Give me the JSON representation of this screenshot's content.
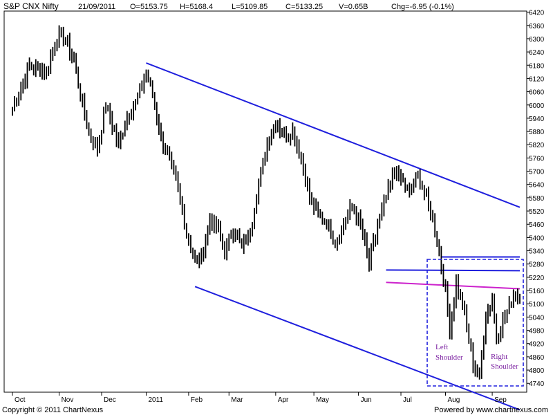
{
  "header": {
    "title": "S&P CNX Nifty",
    "date": "21/09/2011",
    "open": "O=5153.75",
    "high": "H=5168.4",
    "low": "L=5109.85",
    "close": "C=5133.25",
    "volume": "V=0.65B",
    "change": "Chg=-6.95 (-0.1%)"
  },
  "footer": {
    "copyright": "Copyright © 2011 ChartNexus",
    "powered": "Powered by www.chartnexus.com"
  },
  "chart_data": {
    "type": "line",
    "title": "S&P CNX Nifty",
    "y_ticks": [
      4740,
      4800,
      4860,
      4920,
      4980,
      5040,
      5100,
      5160,
      5220,
      5280,
      5340,
      5400,
      5460,
      5520,
      5580,
      5640,
      5700,
      5760,
      5820,
      5880,
      5940,
      6000,
      6060,
      6120,
      6180,
      6240,
      6300,
      6360,
      6420
    ],
    "ylim": [
      4700,
      6425
    ],
    "x_ticks": [
      {
        "label": "Oct",
        "index": 0
      },
      {
        "label": "Nov",
        "index": 22
      },
      {
        "label": "Dec",
        "index": 42
      },
      {
        "label": "2011",
        "index": 63
      },
      {
        "label": "Feb",
        "index": 83
      },
      {
        "label": "Mar",
        "index": 102
      },
      {
        "label": "Apr",
        "index": 124
      },
      {
        "label": "May",
        "index": 142
      },
      {
        "label": "Jun",
        "index": 163
      },
      {
        "label": "Jul",
        "index": 183
      },
      {
        "label": "Aug",
        "index": 204
      },
      {
        "label": "Sep",
        "index": 226
      }
    ],
    "n_points": 240,
    "series": [
      {
        "color": "#000000",
        "close_anchors": [
          [
            0,
            5980
          ],
          [
            8,
            6180
          ],
          [
            16,
            6150
          ],
          [
            21,
            6310
          ],
          [
            25,
            6300
          ],
          [
            29,
            6200
          ],
          [
            33,
            6000
          ],
          [
            36,
            5870
          ],
          [
            40,
            5800
          ],
          [
            44,
            6000
          ],
          [
            50,
            5820
          ],
          [
            54,
            5950
          ],
          [
            58,
            6010
          ],
          [
            63,
            6150
          ],
          [
            66,
            6050
          ],
          [
            70,
            5850
          ],
          [
            74,
            5750
          ],
          [
            78,
            5620
          ],
          [
            82,
            5420
          ],
          [
            86,
            5300
          ],
          [
            89,
            5300
          ],
          [
            93,
            5480
          ],
          [
            97,
            5440
          ],
          [
            100,
            5330
          ],
          [
            104,
            5450
          ],
          [
            108,
            5350
          ],
          [
            112,
            5430
          ],
          [
            116,
            5650
          ],
          [
            120,
            5820
          ],
          [
            124,
            5930
          ],
          [
            128,
            5860
          ],
          [
            132,
            5880
          ],
          [
            136,
            5760
          ],
          [
            140,
            5580
          ],
          [
            144,
            5500
          ],
          [
            148,
            5470
          ],
          [
            152,
            5380
          ],
          [
            156,
            5460
          ],
          [
            160,
            5540
          ],
          [
            164,
            5460
          ],
          [
            168,
            5280
          ],
          [
            172,
            5450
          ],
          [
            176,
            5580
          ],
          [
            180,
            5700
          ],
          [
            184,
            5650
          ],
          [
            187,
            5600
          ],
          [
            191,
            5680
          ],
          [
            195,
            5580
          ],
          [
            198,
            5470
          ],
          [
            201,
            5340
          ],
          [
            204,
            5150
          ],
          [
            206,
            4990
          ],
          [
            209,
            5200
          ],
          [
            212,
            5100
          ],
          [
            214,
            4990
          ],
          [
            217,
            4830
          ],
          [
            220,
            4760
          ],
          [
            223,
            5050
          ],
          [
            226,
            5120
          ],
          [
            228,
            4940
          ],
          [
            231,
            5030
          ],
          [
            234,
            5080
          ],
          [
            236,
            5140
          ]
        ]
      }
    ],
    "trendlines": [
      {
        "color": "#1f1fdd",
        "points": [
          [
            63,
            6190
          ],
          [
            239,
            5537
          ]
        ]
      },
      {
        "color": "#1f1fdd",
        "points": [
          [
            86,
            5178
          ],
          [
            239,
            4620
          ]
        ]
      },
      {
        "color": "#1f1fdd",
        "points": [
          [
            202,
            5312
          ],
          [
            239,
            5312
          ]
        ]
      },
      {
        "color": "#1f1fdd",
        "points": [
          [
            176,
            5253
          ],
          [
            239,
            5250
          ]
        ]
      },
      {
        "color": "#cc22cc",
        "points": [
          [
            176,
            5197
          ],
          [
            239,
            5168
          ]
        ]
      }
    ],
    "annotations": {
      "left_shoulder": [
        "Left",
        "Shoulder"
      ],
      "right_shoulder": [
        "Right",
        "Shoulder"
      ]
    },
    "grid": false
  },
  "colors": {
    "trendline": "#1f1fdd",
    "neckline": "#cc22cc",
    "annotation": "#7a1fa0",
    "price": "#000000"
  }
}
